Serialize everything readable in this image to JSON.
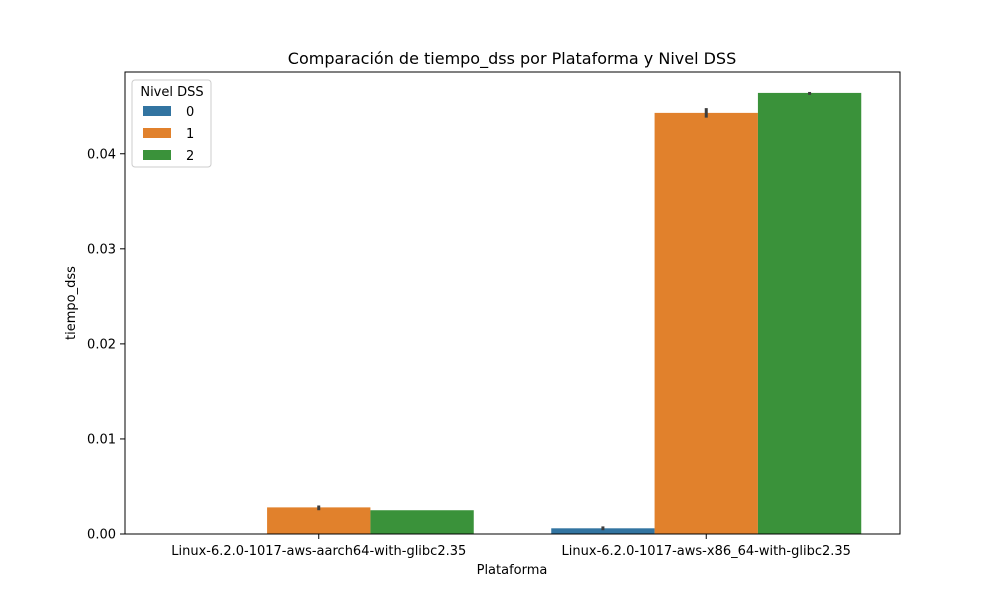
{
  "chart_data": {
    "type": "bar",
    "title": "Comparación de tiempo_dss por Plataforma y Nivel DSS",
    "xlabel": "Plataforma",
    "ylabel": "tiempo_dss",
    "categories": [
      "Linux-6.2.0-1017-aws-aarch64-with-glibc2.35",
      "Linux-6.2.0-1017-aws-x86_64-with-glibc2.35"
    ],
    "series": [
      {
        "name": "0",
        "color": "#3274a1",
        "values": [
          0.0,
          0.0006
        ],
        "error": [
          [
            0.0,
            0.0
          ],
          [
            0.0004,
            0.0008
          ]
        ]
      },
      {
        "name": "1",
        "color": "#e1812c",
        "values": [
          0.0028,
          0.0443
        ],
        "error": [
          [
            0.0025,
            0.003
          ],
          [
            0.0438,
            0.0448
          ]
        ]
      },
      {
        "name": "2",
        "color": "#3a923a",
        "values": [
          0.0025,
          0.0464
        ],
        "error": [
          [
            0.0025,
            0.0025
          ],
          [
            0.0462,
            0.0465
          ]
        ]
      }
    ],
    "yticks": [
      "0.00",
      "0.01",
      "0.02",
      "0.03",
      "0.04"
    ],
    "ylim": [
      0,
      0.0486
    ],
    "legend": {
      "title": "Nivel DSS",
      "position": "top-left"
    },
    "grid": false
  }
}
